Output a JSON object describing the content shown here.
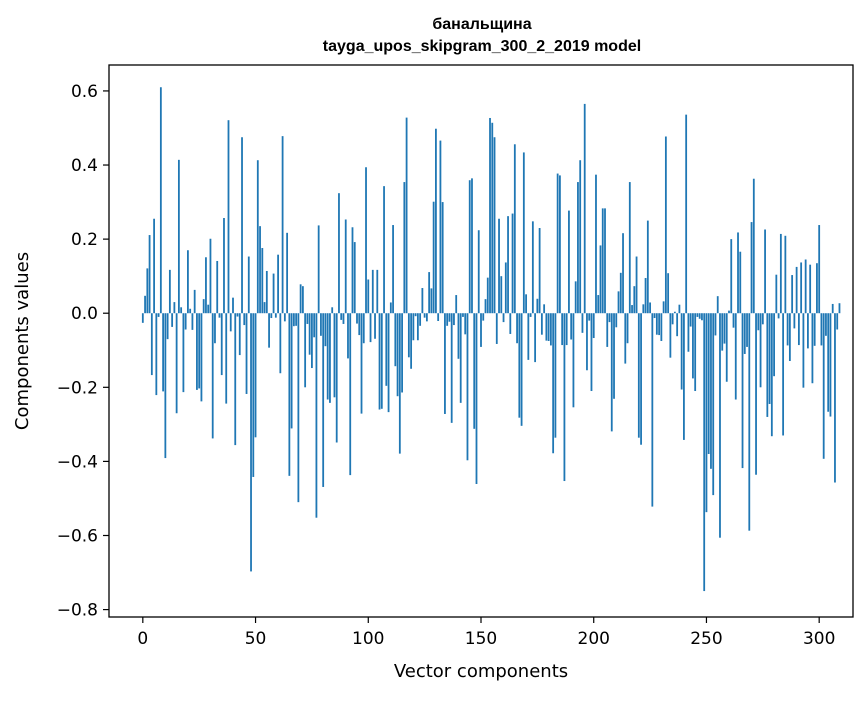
{
  "chart_data": {
    "type": "bar",
    "title": "банальщина",
    "subtitle": "tayga_upos_skipgram_300_2_2019 model",
    "xlabel": "Vector components",
    "ylabel": "Components values",
    "xlim": [
      -15,
      315
    ],
    "ylim": [
      -0.82,
      0.67
    ],
    "xticks": [
      0,
      50,
      100,
      150,
      200,
      250,
      300
    ],
    "xtick_labels": [
      "0",
      "50",
      "100",
      "150",
      "200",
      "250",
      "300"
    ],
    "yticks": [
      -0.8,
      -0.6,
      -0.4,
      -0.2,
      0.0,
      0.2,
      0.4,
      0.6
    ],
    "ytick_labels": [
      "−0.8",
      "−0.6",
      "−0.4",
      "−0.2",
      "0.0",
      "0.2",
      "0.4",
      "0.6"
    ],
    "grid": false,
    "bar_color": "#1f77b4",
    "values": [
      -0.026,
      0.047,
      0.121,
      0.211,
      -0.167,
      0.255,
      -0.221,
      -0.01,
      0.61,
      -0.211,
      -0.391,
      -0.07,
      0.117,
      -0.037,
      0.03,
      -0.27,
      0.414,
      0.016,
      -0.213,
      -0.044,
      0.17,
      0.012,
      -0.045,
      0.063,
      -0.207,
      -0.203,
      -0.238,
      0.038,
      0.151,
      0.023,
      0.201,
      -0.338,
      -0.081,
      0.141,
      -0.012,
      -0.167,
      0.257,
      -0.244,
      0.521,
      -0.049,
      0.042,
      -0.356,
      -0.009,
      -0.113,
      0.475,
      -0.032,
      -0.218,
      0.153,
      -0.697,
      -0.442,
      -0.335,
      0.413,
      0.235,
      0.176,
      0.03,
      0.114,
      -0.093,
      -0.013,
      0.107,
      -0.012,
      0.158,
      -0.162,
      0.478,
      -0.022,
      0.217,
      -0.439,
      -0.311,
      -0.035,
      -0.034,
      -0.51,
      0.078,
      0.073,
      -0.2,
      -0.029,
      -0.112,
      -0.148,
      -0.065,
      -0.552,
      0.237,
      -0.061,
      -0.469,
      -0.089,
      -0.233,
      -0.242,
      0.016,
      -0.227,
      -0.349,
      0.324,
      -0.018,
      -0.029,
      0.253,
      -0.122,
      -0.437,
      0.232,
      0.192,
      -0.028,
      -0.059,
      -0.271,
      -0.081,
      0.394,
      0.091,
      -0.078,
      0.117,
      -0.069,
      0.117,
      -0.26,
      -0.258,
      0.343,
      -0.196,
      -0.267,
      0.029,
      0.238,
      -0.143,
      -0.224,
      -0.379,
      -0.214,
      0.354,
      0.528,
      -0.119,
      -0.15,
      -0.073,
      -0.008,
      -0.073,
      -0.034,
      0.068,
      -0.012,
      -0.022,
      0.111,
      0.067,
      0.301,
      0.498,
      -0.021,
      0.466,
      0.3,
      -0.272,
      -0.034,
      -0.023,
      -0.296,
      -0.032,
      0.049,
      -0.123,
      -0.242,
      -0.01,
      -0.057,
      -0.397,
      0.359,
      0.364,
      -0.312,
      -0.461,
      0.224,
      -0.091,
      -0.02,
      0.038,
      0.096,
      0.527,
      0.514,
      0.475,
      -0.083,
      0.255,
      0.1,
      -0.024,
      0.137,
      0.262,
      -0.056,
      0.269,
      0.456,
      -0.081,
      -0.282,
      -0.304,
      0.434,
      0.051,
      -0.126,
      -0.01,
      0.248,
      -0.132,
      0.039,
      0.23,
      -0.058,
      0.024,
      -0.074,
      -0.075,
      -0.087,
      -0.378,
      -0.336,
      0.377,
      0.372,
      -0.086,
      -0.453,
      -0.086,
      0.277,
      -0.071,
      -0.254,
      0.086,
      0.354,
      0.413,
      -0.053,
      0.565,
      -0.154,
      -0.02,
      -0.21,
      -0.067,
      0.374,
      0.049,
      0.183,
      0.283,
      0.283,
      -0.091,
      -0.024,
      -0.319,
      -0.231,
      -0.038,
      0.059,
      0.109,
      0.216,
      -0.136,
      -0.081,
      0.354,
      0.022,
      0.073,
      0.153,
      -0.336,
      -0.355,
      0.024,
      0.095,
      0.25,
      0.029,
      -0.522,
      -0.013,
      -0.058,
      -0.059,
      -0.075,
      0.032,
      0.477,
      0.108,
      -0.12,
      -0.03,
      0.004,
      -0.062,
      0.023,
      -0.206,
      -0.342,
      0.536,
      -0.104,
      -0.036,
      -0.176,
      -0.21,
      -0.01,
      -0.015,
      -0.019,
      -0.75,
      -0.537,
      -0.38,
      -0.42,
      -0.491,
      -0.06,
      0.046,
      -0.606,
      -0.101,
      -0.082,
      -0.185,
      0.007,
      0.2,
      -0.039,
      -0.233,
      0.218,
      0.166,
      -0.418,
      -0.11,
      -0.091,
      -0.587,
      0.246,
      0.363,
      -0.436,
      -0.046,
      -0.2,
      -0.03,
      0.226,
      -0.28,
      -0.245,
      -0.332,
      -0.17,
      0.104,
      -0.014,
      0.214,
      -0.33,
      0.209,
      -0.087,
      -0.129,
      0.103,
      -0.041,
      0.125,
      -0.086,
      0.137,
      -0.201,
      0.145,
      -0.095,
      0.131,
      -0.189,
      -0.088,
      0.135,
      0.238,
      -0.087,
      -0.393,
      -0.061,
      -0.266,
      -0.279,
      0.025,
      -0.457,
      -0.044,
      0.027
    ]
  }
}
